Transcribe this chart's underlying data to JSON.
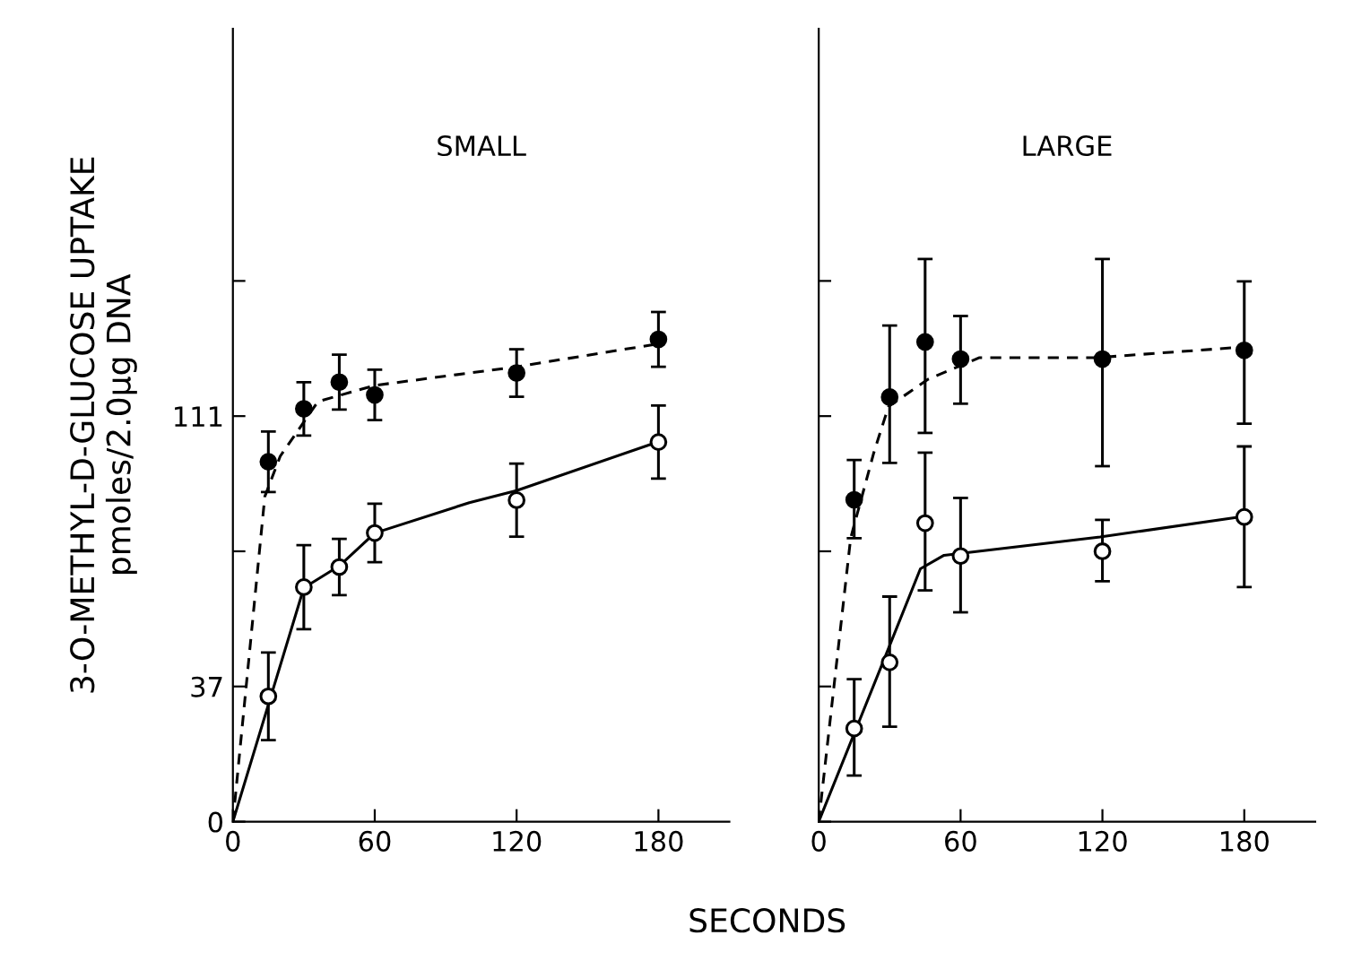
{
  "chart_data": [
    {
      "type": "scatter",
      "title": "SMALL",
      "ylabel": "3-O-METHYL-D-GLUCOSE UPTAKE\npmoles/2.0µg DNA",
      "xlabel": "SECONDS",
      "xlim": [
        0,
        210
      ],
      "xticks": [
        0,
        60,
        120,
        180
      ],
      "ylim": [
        0,
        217
      ],
      "yticks": [
        0,
        37,
        {
          "value": 74,
          "label": null
        },
        111,
        {
          "value": 148,
          "label": null
        }
      ],
      "grid": false,
      "legend": false,
      "series": [
        {
          "type": "line",
          "line_style": "dashed",
          "marker": "none",
          "color": "#000000",
          "x": [
            0,
            13.5,
            20,
            36,
            60,
            120,
            180
          ],
          "values": [
            0,
            89,
            100,
            115,
            119.4,
            124.5,
            130.8
          ]
        },
        {
          "type": "line",
          "line_style": "solid",
          "marker": "none",
          "color": "#000000",
          "x": [
            0,
            30,
            45,
            60,
            100,
            120,
            180
          ],
          "values": [
            0,
            64,
            70,
            79,
            87.3,
            90.6,
            104
          ]
        },
        {
          "marker": "circle",
          "color": "#000000",
          "x": [
            15,
            30,
            45,
            60,
            120,
            180
          ],
          "values": [
            98.5,
            113,
            120.3,
            116.8,
            122.8,
            132
          ],
          "errors": [
            8.3,
            7.3,
            7.5,
            6.9,
            6.5,
            7.5
          ]
        },
        {
          "marker": "circle",
          "color": "#ffffff",
          "x": [
            15,
            30,
            45,
            60,
            120,
            180
          ],
          "values": [
            34.3,
            64.2,
            69.7,
            79,
            88,
            103.9
          ],
          "errors": [
            12,
            11.5,
            7.7,
            8,
            10,
            10
          ]
        }
      ]
    },
    {
      "type": "scatter",
      "title": "LARGE",
      "tick_labels": "x",
      "xlim": [
        0,
        210
      ],
      "xticks": [
        0,
        60,
        120,
        180
      ],
      "ylim": [
        0,
        217
      ],
      "yticks": [
        {
          "value": 0,
          "label": null
        },
        {
          "value": 37,
          "label": null
        },
        {
          "value": 74,
          "label": null
        },
        {
          "value": 111,
          "label": null
        },
        {
          "value": 148,
          "label": null
        }
      ],
      "grid": false,
      "legend": false,
      "series": [
        {
          "type": "line",
          "line_style": "dashed",
          "marker": "none",
          "color": "#000000",
          "x": [
            0,
            13.5,
            23.3,
            29.5,
            46,
            68,
            117.5,
            177
          ],
          "values": [
            0,
            77.6,
            101,
            113.6,
            121,
            127,
            127,
            129.8
          ]
        },
        {
          "type": "line",
          "line_style": "solid",
          "marker": "none",
          "color": "#000000",
          "x": [
            0,
            29.5,
            43,
            53,
            119,
            178
          ],
          "values": [
            0,
            47.4,
            69.2,
            72.9,
            77.9,
            83.4
          ]
        },
        {
          "marker": "circle",
          "color": "#000000",
          "x": [
            15,
            30,
            45,
            60,
            120,
            180
          ],
          "values": [
            88.1,
            116.2,
            131.3,
            126.6,
            126.6,
            129
          ],
          "errors": [
            [
              77.6,
              99
            ],
            [
              98.2,
              135.8
            ],
            [
              106.4,
              154
            ],
            [
              114.4,
              138.4
            ],
            [
              97.3,
              154
            ],
            [
              108.9,
              147.9
            ]
          ]
        },
        {
          "marker": "circle",
          "color": "#ffffff",
          "x": [
            15,
            30,
            45,
            60,
            120,
            180
          ],
          "values": [
            25.5,
            43.6,
            81.7,
            72.7,
            74,
            83.4
          ],
          "errors": [
            [
              12.6,
              39
            ],
            [
              26,
              61.6
            ],
            [
              63.3,
              101
            ],
            [
              57.3,
              88.6
            ],
            [
              65.8,
              82.6
            ],
            [
              64.2,
              102.7
            ]
          ]
        }
      ]
    }
  ]
}
